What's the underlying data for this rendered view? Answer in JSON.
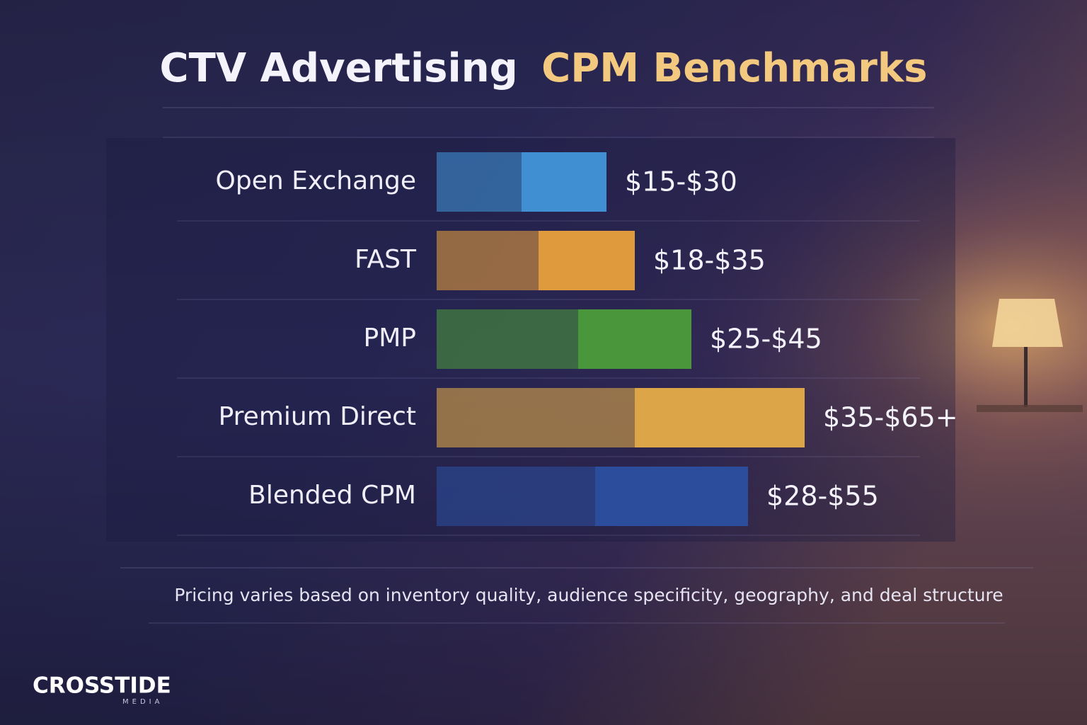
{
  "chart_data": {
    "type": "range-bar",
    "title": "CTV Advertising",
    "title_highlight": "CPM Benchmarks",
    "categories": [
      "Open Exchange",
      "FAST",
      "PMP",
      "Premium Direct",
      "Blended CPM"
    ],
    "values": [
      [
        15,
        30
      ],
      [
        18,
        35
      ],
      [
        25,
        45
      ],
      [
        35,
        65
      ],
      [
        28,
        55
      ]
    ],
    "value_labels": [
      "$15-$30",
      "$18-$35",
      "$25-$45",
      "$35-$65+",
      "$28-$55"
    ],
    "colors": [
      "#3f8fd2",
      "#e09a3e",
      "#4a963a",
      "#dca648",
      "#2c4d9c"
    ],
    "footnote": "Pricing varies based on inventory quality, audience specificity, geography, and deal structure",
    "logo": {
      "name": "CROSSTIDE",
      "tagline": "MEDIA"
    }
  }
}
